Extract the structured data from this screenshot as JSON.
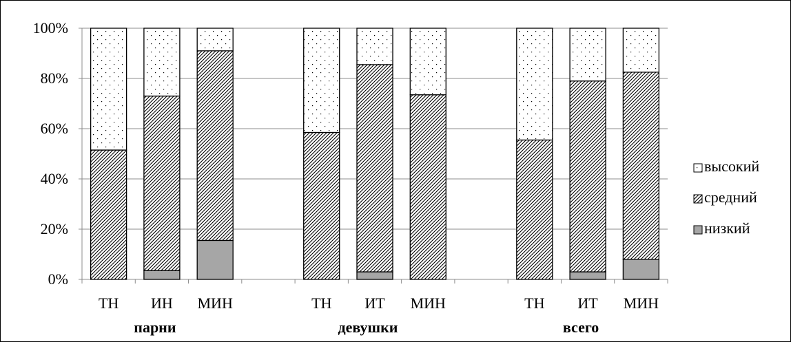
{
  "chart_data": {
    "type": "bar",
    "stacked": true,
    "percent": true,
    "ylim": [
      0,
      100
    ],
    "yticks": [
      "0%",
      "20%",
      "40%",
      "60%",
      "80%",
      "100%"
    ],
    "grid": true,
    "legend_position": "right",
    "groups": [
      {
        "name": "парни",
        "categories": [
          "ТН",
          "ИН",
          "МИН"
        ]
      },
      {
        "name": "девушки",
        "categories": [
          "ТН",
          "ИТ",
          "МИН"
        ]
      },
      {
        "name": "всего",
        "categories": [
          "ТН",
          "ИТ",
          "МИН"
        ]
      }
    ],
    "series": [
      {
        "name": "низкий",
        "fill": "solid-gray",
        "color": "#a6a6a6",
        "values": [
          0,
          3.5,
          15.5,
          0,
          3,
          0,
          0,
          3,
          8
        ]
      },
      {
        "name": "средний",
        "fill": "diagonal-hatch",
        "color": "#000000",
        "values": [
          51.5,
          69.5,
          75.5,
          58.5,
          82.5,
          73.5,
          55.5,
          76,
          74.5
        ]
      },
      {
        "name": "высокий",
        "fill": "dots",
        "color": "#000000",
        "values": [
          48.5,
          27,
          9,
          41.5,
          14.5,
          26.5,
          44.5,
          21,
          17.5
        ]
      }
    ],
    "legend_order": [
      "высокий",
      "средний",
      "низкий"
    ]
  }
}
